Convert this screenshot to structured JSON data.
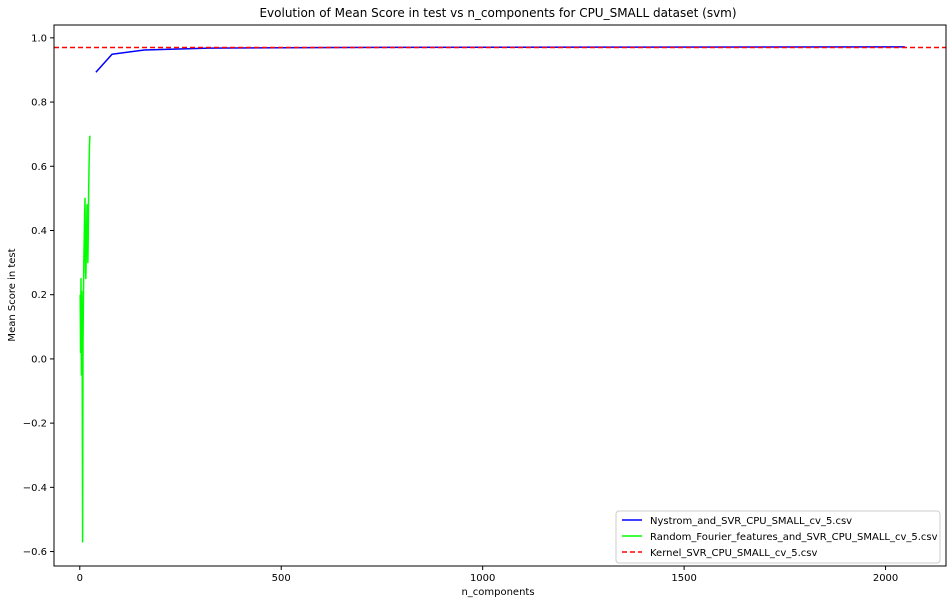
{
  "chart_data": {
    "type": "line",
    "title": "Evolution of Mean Score in test vs n_components for CPU_SMALL dataset (svm)",
    "xlabel": "n_components",
    "ylabel": "Mean Score in test",
    "xlim": [
      -64,
      2150
    ],
    "ylim": [
      -0.645,
      1.04
    ],
    "xticks": [
      0,
      500,
      1000,
      1500,
      2000
    ],
    "yticks": [
      -0.6,
      -0.4,
      -0.2,
      0.0,
      0.2,
      0.4,
      0.6,
      0.8,
      1.0
    ],
    "xtick_labels": [
      "0",
      "500",
      "1000",
      "1500",
      "2000"
    ],
    "ytick_labels": [
      "−0.6",
      "−0.4",
      "−0.2",
      "0.0",
      "0.2",
      "0.4",
      "0.6",
      "0.8",
      "1.0"
    ],
    "grid": false,
    "legend_position": "lower-right",
    "series": [
      {
        "name": "Nystrom_and_SVR_CPU_SMALL_cv_5.csv",
        "color": "#0000ff",
        "style": "solid",
        "x": [
          40,
          80,
          160,
          320,
          640,
          1280,
          2048
        ],
        "y": [
          0.893,
          0.949,
          0.962,
          0.968,
          0.97,
          0.971,
          0.972
        ]
      },
      {
        "name": "Random_Fourier_features_and_SVR_CPU_SMALL_cv_5.csv",
        "color": "#00ff00",
        "style": "solid",
        "x": [
          1,
          2,
          3,
          4,
          5,
          6,
          7,
          8,
          9,
          10,
          11,
          12,
          13,
          14,
          15,
          16,
          17,
          18,
          19,
          20,
          21,
          22,
          23,
          24,
          25
        ],
        "y": [
          0.2,
          0.02,
          0.25,
          -0.05,
          0.21,
          0.0,
          -0.57,
          0.05,
          0.18,
          0.3,
          0.37,
          0.45,
          0.5,
          0.27,
          0.25,
          0.32,
          0.4,
          0.48,
          0.44,
          0.3,
          0.38,
          0.52,
          0.6,
          0.66,
          0.695
        ]
      },
      {
        "name": "Kernel_SVR_CPU_SMALL_cv_5.csv",
        "color": "#ff0000",
        "style": "dashed",
        "hline": 0.97
      }
    ]
  }
}
